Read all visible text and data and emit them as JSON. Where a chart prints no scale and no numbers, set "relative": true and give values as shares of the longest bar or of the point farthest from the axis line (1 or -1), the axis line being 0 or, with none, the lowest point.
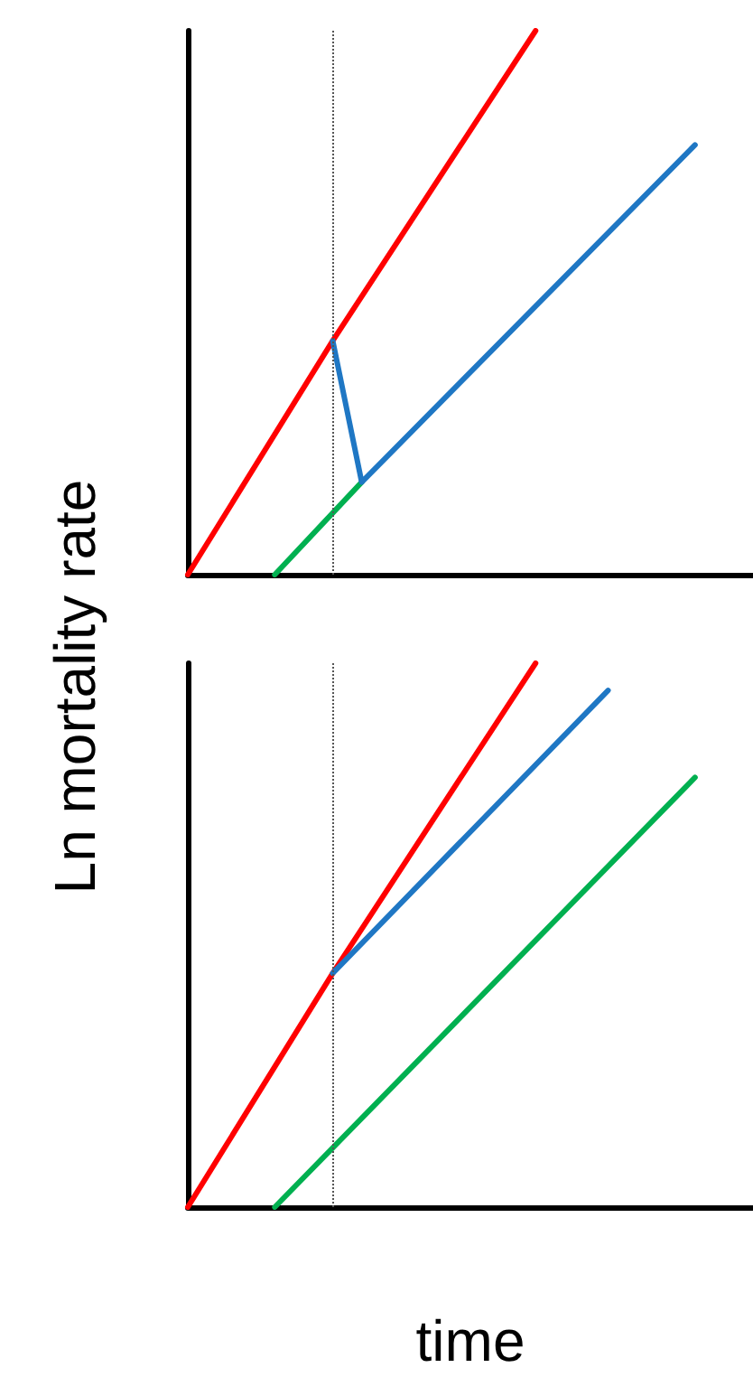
{
  "chart_data": [
    {
      "type": "line",
      "relative": true,
      "ylabel": "Ln mortality rate",
      "categories": [
        null,
        null,
        null,
        null,
        null,
        null,
        null,
        null,
        null,
        null,
        null,
        null,
        null,
        null,
        null,
        null,
        null,
        null,
        null,
        null,
        null,
        null,
        null,
        null,
        null,
        null,
        null,
        null,
        null,
        null,
        null,
        null,
        null,
        null,
        null,
        null,
        null,
        null,
        null,
        null
      ],
      "series": [
        {
          "color": "#ff0000",
          "values": [
            0,
            null,
            null,
            null,
            null,
            null,
            null,
            null,
            null,
            null,
            0.43,
            null,
            null,
            null,
            null,
            null,
            null,
            null,
            null,
            null,
            null,
            null,
            null,
            null,
            1,
            null,
            null,
            null,
            null,
            null,
            null,
            null,
            null,
            null,
            null,
            null,
            null,
            null,
            null,
            null
          ]
        },
        {
          "color": "#00b050",
          "values": [
            null,
            null,
            null,
            null,
            null,
            null,
            0,
            null,
            null,
            null,
            null,
            null,
            0.17,
            null,
            null,
            null,
            null,
            null,
            null,
            null,
            null,
            null,
            null,
            null,
            null,
            null,
            null,
            null,
            null,
            null,
            null,
            null,
            null,
            null,
            null,
            null,
            null,
            null,
            null,
            null
          ]
        },
        {
          "color": "#1f77c4",
          "values": [
            null,
            null,
            null,
            null,
            null,
            null,
            null,
            null,
            null,
            null,
            0.43,
            null,
            0.17,
            null,
            null,
            null,
            null,
            null,
            null,
            null,
            null,
            null,
            null,
            null,
            null,
            null,
            null,
            null,
            null,
            null,
            null,
            null,
            null,
            null,
            null,
            0.79,
            null,
            null,
            null,
            null
          ]
        }
      ],
      "grid": false,
      "line_style": "solid"
    },
    {
      "type": "line",
      "relative": true,
      "xlabel": "time",
      "categories": [
        null,
        null,
        null,
        null,
        null,
        null,
        null,
        null,
        null,
        null,
        null,
        null,
        null,
        null,
        null,
        null,
        null,
        null,
        null,
        null,
        null,
        null,
        null,
        null,
        null,
        null,
        null,
        null,
        null,
        null,
        null,
        null,
        null,
        null,
        null,
        null,
        null,
        null,
        null,
        null
      ],
      "series": [
        {
          "color": "#ff0000",
          "values": [
            0,
            null,
            null,
            null,
            null,
            null,
            null,
            null,
            null,
            null,
            0.43,
            null,
            null,
            null,
            null,
            null,
            null,
            null,
            null,
            null,
            null,
            null,
            null,
            null,
            1,
            null,
            null,
            null,
            null,
            null,
            null,
            null,
            null,
            null,
            null,
            null,
            null,
            null,
            null,
            null
          ]
        },
        {
          "color": "#1f77c4",
          "values": [
            null,
            null,
            null,
            null,
            null,
            null,
            null,
            null,
            null,
            null,
            0.43,
            null,
            null,
            null,
            null,
            null,
            null,
            null,
            null,
            null,
            null,
            null,
            null,
            null,
            null,
            null,
            null,
            null,
            null,
            0.95,
            null,
            null,
            null,
            null,
            null,
            null,
            null,
            null,
            null,
            null
          ]
        },
        {
          "color": "#00b050",
          "values": [
            null,
            null,
            null,
            null,
            null,
            null,
            0,
            null,
            null,
            null,
            null,
            null,
            null,
            null,
            null,
            null,
            null,
            null,
            null,
            null,
            null,
            null,
            null,
            null,
            null,
            null,
            null,
            null,
            null,
            null,
            null,
            null,
            null,
            null,
            null,
            0.79,
            null,
            null,
            null,
            null
          ]
        }
      ],
      "grid": false,
      "line_style": "solid"
    }
  ]
}
